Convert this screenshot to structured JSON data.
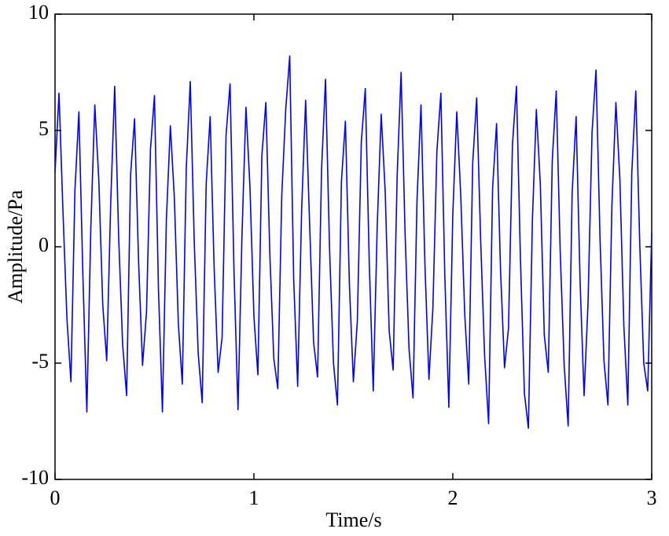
{
  "chart_data": {
    "type": "line",
    "xlabel": "Time/s",
    "ylabel": "Amplitude/Pa",
    "x": [
      0,
      0.02,
      0.04,
      0.06,
      0.08,
      0.1,
      0.12,
      0.14,
      0.16,
      0.18,
      0.2,
      0.22,
      0.24,
      0.26,
      0.28,
      0.3,
      0.32,
      0.34,
      0.36,
      0.38,
      0.4,
      0.42,
      0.44,
      0.46,
      0.48,
      0.5,
      0.52,
      0.54,
      0.56,
      0.58,
      0.6,
      0.62,
      0.64,
      0.66,
      0.68,
      0.7,
      0.72,
      0.74,
      0.76,
      0.78,
      0.8,
      0.82,
      0.84,
      0.86,
      0.88,
      0.9,
      0.92,
      0.94,
      0.96,
      0.98,
      1,
      1.02,
      1.04,
      1.06,
      1.08,
      1.1,
      1.12,
      1.14,
      1.16,
      1.18,
      1.2,
      1.22,
      1.24,
      1.26,
      1.28,
      1.3,
      1.32,
      1.34,
      1.36,
      1.38,
      1.4,
      1.42,
      1.44,
      1.46,
      1.48,
      1.5,
      1.52,
      1.54,
      1.56,
      1.58,
      1.6,
      1.62,
      1.64,
      1.66,
      1.68,
      1.7,
      1.72,
      1.74,
      1.76,
      1.78,
      1.8,
      1.82,
      1.84,
      1.86,
      1.88,
      1.9,
      1.92,
      1.94,
      1.96,
      1.98,
      2,
      2.02,
      2.04,
      2.06,
      2.08,
      2.1,
      2.12,
      2.14,
      2.16,
      2.18,
      2.2,
      2.22,
      2.24,
      2.26,
      2.28,
      2.3,
      2.32,
      2.34,
      2.36,
      2.38,
      2.4,
      2.42,
      2.44,
      2.46,
      2.48,
      2.5,
      2.52,
      2.54,
      2.56,
      2.58,
      2.6,
      2.62,
      2.64,
      2.66,
      2.68,
      2.7,
      2.72,
      2.74,
      2.76,
      2.78,
      2.8,
      2.82,
      2.84,
      2.86,
      2.88,
      2.9,
      2.92,
      2.94,
      2.96,
      2.98,
      3
    ],
    "series": [
      {
        "color": "#0000ff",
        "values": [
          3.2,
          6.6,
          1.5,
          -3.1,
          -5.8,
          2.4,
          5.8,
          -1.2,
          -7.1,
          0.8,
          6.1,
          2.9,
          -2.5,
          -4.9,
          1.9,
          6.9,
          0.4,
          -4.2,
          -6.4,
          3.1,
          5.5,
          -0.6,
          -5.1,
          -2.8,
          4.2,
          6.5,
          -1.8,
          -7.1,
          1.2,
          5.2,
          2.1,
          -3.3,
          -5.9,
          3.4,
          7.1,
          0.2,
          -4.6,
          -6.7,
          2.7,
          5.6,
          -0.9,
          -5.4,
          -3.9,
          4.8,
          7.0,
          -1.1,
          -7.0,
          0.5,
          6.0,
          2.6,
          -3.0,
          -5.5,
          3.9,
          6.2,
          -0.3,
          -4.8,
          -6.1,
          2.2,
          5.9,
          8.2,
          -1.4,
          -6.0,
          1.6,
          6.3,
          1.0,
          -4.1,
          -5.6,
          3.3,
          7.2,
          0.0,
          -5.0,
          -6.8,
          2.8,
          5.4,
          -1.6,
          -5.8,
          -3.2,
          4.5,
          6.8,
          -0.7,
          -6.2,
          0.9,
          5.7,
          2.4,
          -3.6,
          -5.3,
          3.0,
          7.5,
          0.6,
          -4.4,
          -6.5,
          2.0,
          6.1,
          -0.8,
          -5.7,
          -2.6,
          4.1,
          6.6,
          -1.3,
          -6.9,
          1.4,
          5.8,
          2.2,
          -2.9,
          -5.9,
          3.6,
          6.4,
          0.3,
          -4.7,
          -7.6,
          2.5,
          5.3,
          -1.0,
          -5.2,
          -3.5,
          4.4,
          6.9,
          -0.5,
          -6.3,
          -7.8,
          1.1,
          5.9,
          2.7,
          -3.8,
          -5.4,
          3.7,
          6.7,
          -0.2,
          -5.1,
          -7.7,
          2.3,
          5.6,
          -1.5,
          -6.4,
          -2.4,
          4.9,
          7.6,
          0.4,
          -4.9,
          -6.8,
          1.8,
          6.2,
          2.9,
          -3.4,
          -6.8,
          3.2,
          6.7,
          0.1,
          -5.0,
          -6.2,
          0.6
        ]
      }
    ],
    "xlim": [
      0,
      3
    ],
    "xticks": [
      0,
      1,
      2,
      3
    ],
    "ylim": [
      -10,
      10
    ],
    "yticks": [
      -10,
      -5,
      0,
      5,
      10
    ]
  }
}
